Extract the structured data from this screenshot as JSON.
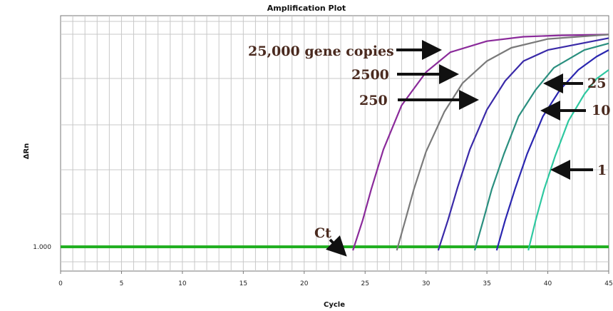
{
  "chart_data": {
    "type": "line",
    "title": "Amplification Plot",
    "xlabel": "Cycle",
    "ylabel": "ΔRn",
    "xlim": [
      0,
      45
    ],
    "x_ticks": [
      "0",
      "5",
      "10",
      "15",
      "20",
      "25",
      "30",
      "35",
      "40",
      "45"
    ],
    "y_tick_labels": [
      "1.000"
    ],
    "grid": true,
    "threshold": {
      "label": "1.000",
      "color": "#22b022"
    },
    "series": [
      {
        "name": "25,000 gene copies",
        "color": "#8a2a9a",
        "points": [
          [
            24,
            -0.08
          ],
          [
            24.8,
            0.6
          ],
          [
            25.5,
            1.3
          ],
          [
            26.5,
            2.2
          ],
          [
            28,
            3.2
          ],
          [
            30,
            3.95
          ],
          [
            32,
            4.4
          ],
          [
            35,
            4.65
          ],
          [
            38,
            4.75
          ],
          [
            41,
            4.78
          ],
          [
            45,
            4.8
          ]
        ]
      },
      {
        "name": "2500",
        "color": "#7a7a7a",
        "points": [
          [
            27.6,
            -0.08
          ],
          [
            28.3,
            0.6
          ],
          [
            29,
            1.3
          ],
          [
            30,
            2.15
          ],
          [
            31.5,
            3.05
          ],
          [
            33,
            3.7
          ],
          [
            35,
            4.2
          ],
          [
            37,
            4.5
          ],
          [
            40,
            4.7
          ],
          [
            45,
            4.8
          ]
        ]
      },
      {
        "name": "250",
        "color": "#3a2aa8",
        "points": [
          [
            31,
            -0.08
          ],
          [
            31.8,
            0.6
          ],
          [
            32.6,
            1.35
          ],
          [
            33.6,
            2.2
          ],
          [
            35,
            3.1
          ],
          [
            36.5,
            3.75
          ],
          [
            38,
            4.2
          ],
          [
            40,
            4.45
          ],
          [
            45,
            4.72
          ]
        ]
      },
      {
        "name": "25",
        "color": "#2a8f7f",
        "points": [
          [
            34,
            -0.08
          ],
          [
            34.7,
            0.6
          ],
          [
            35.4,
            1.3
          ],
          [
            36.4,
            2.1
          ],
          [
            37.6,
            2.95
          ],
          [
            39,
            3.55
          ],
          [
            40.5,
            4.05
          ],
          [
            43,
            4.45
          ],
          [
            45,
            4.6
          ]
        ]
      },
      {
        "name": "10",
        "color": "#2a26b0",
        "points": [
          [
            35.8,
            -0.08
          ],
          [
            36.5,
            0.6
          ],
          [
            37.3,
            1.3
          ],
          [
            38.3,
            2.1
          ],
          [
            39.6,
            2.95
          ],
          [
            41,
            3.55
          ],
          [
            42.5,
            4.0
          ],
          [
            44,
            4.3
          ],
          [
            45,
            4.45
          ]
        ]
      },
      {
        "name": "1",
        "color": "#2ec8a0",
        "points": [
          [
            38.4,
            -0.08
          ],
          [
            39,
            0.6
          ],
          [
            39.7,
            1.3
          ],
          [
            40.6,
            2.05
          ],
          [
            41.7,
            2.85
          ],
          [
            43,
            3.45
          ],
          [
            44,
            3.8
          ],
          [
            45,
            4.0
          ]
        ]
      }
    ],
    "annotations": [
      "25,000 gene copies",
      "2500",
      "250",
      "25",
      "10",
      "1",
      "Ct"
    ]
  }
}
